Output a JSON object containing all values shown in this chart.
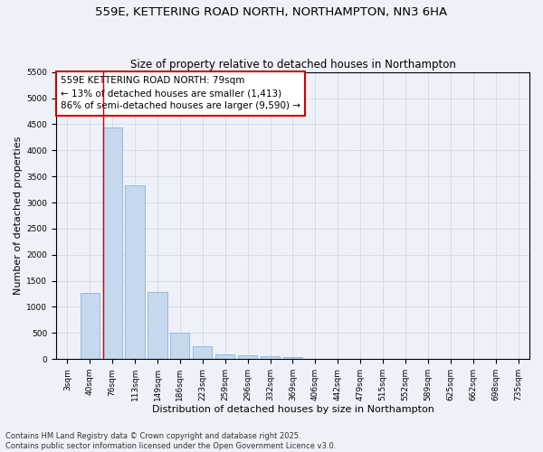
{
  "title1": "559E, KETTERING ROAD NORTH, NORTHAMPTON, NN3 6HA",
  "title2": "Size of property relative to detached houses in Northampton",
  "xlabel": "Distribution of detached houses by size in Northampton",
  "ylabel": "Number of detached properties",
  "categories": [
    "3sqm",
    "40sqm",
    "76sqm",
    "113sqm",
    "149sqm",
    "186sqm",
    "223sqm",
    "259sqm",
    "296sqm",
    "332sqm",
    "369sqm",
    "406sqm",
    "442sqm",
    "479sqm",
    "515sqm",
    "552sqm",
    "589sqm",
    "625sqm",
    "662sqm",
    "698sqm",
    "735sqm"
  ],
  "values": [
    0,
    1270,
    4430,
    3330,
    1290,
    500,
    240,
    90,
    65,
    50,
    40,
    0,
    0,
    0,
    0,
    0,
    0,
    0,
    0,
    0,
    0
  ],
  "bar_color": "#c5d8ee",
  "bar_edge_color": "#8ab4d8",
  "grid_color": "#c8d4e8",
  "background_color": "#eef2f8",
  "vline_color": "#cc0000",
  "annotation_text": "559E KETTERING ROAD NORTH: 79sqm\n← 13% of detached houses are smaller (1,413)\n86% of semi-detached houses are larger (9,590) →",
  "annotation_box_color": "#ffffff",
  "annotation_box_edge": "#cc0000",
  "footer1": "Contains HM Land Registry data © Crown copyright and database right 2025.",
  "footer2": "Contains public sector information licensed under the Open Government Licence v3.0.",
  "ylim": [
    0,
    5500
  ],
  "yticks": [
    0,
    500,
    1000,
    1500,
    2000,
    2500,
    3000,
    3500,
    4000,
    4500,
    5000,
    5500
  ],
  "title_fontsize": 9.5,
  "subtitle_fontsize": 8.5,
  "axis_label_fontsize": 8,
  "tick_fontsize": 6.5,
  "footer_fontsize": 6,
  "annot_fontsize": 7.5
}
